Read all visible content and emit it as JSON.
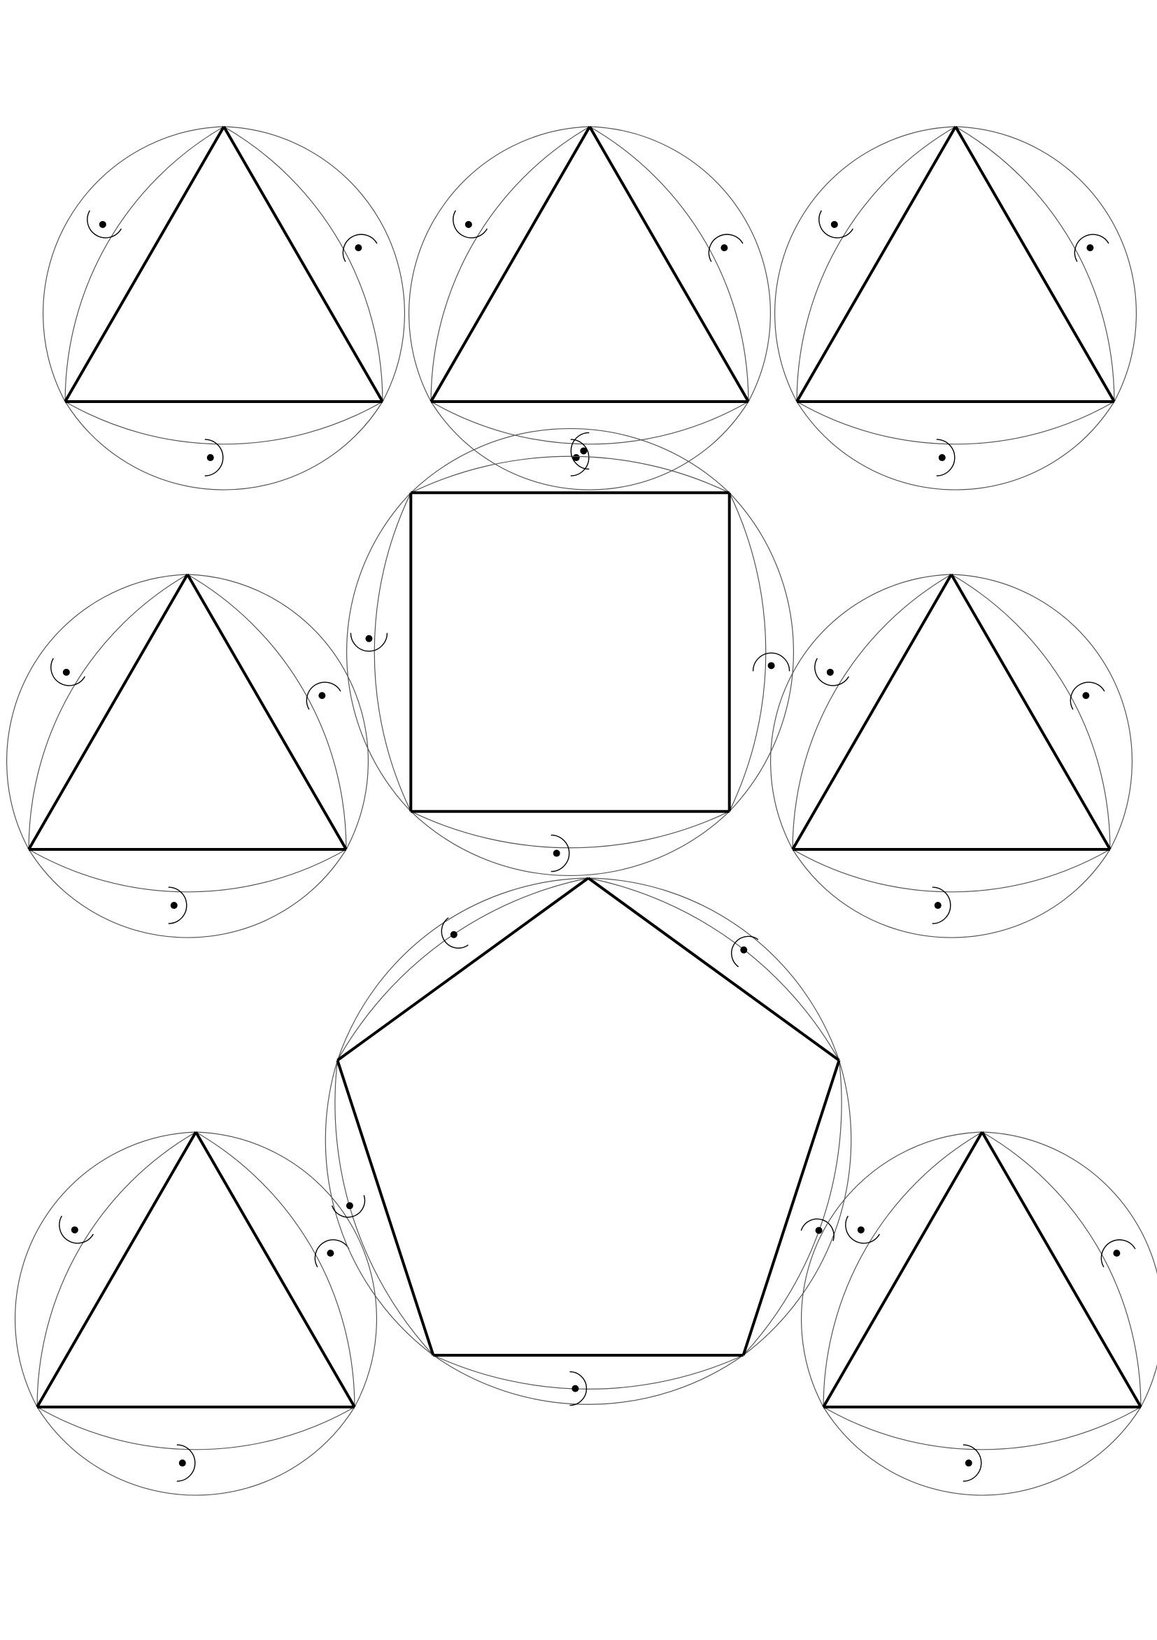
{
  "page": {
    "background": "#ffffff",
    "line_color": "#000000",
    "arc_color": "#555555"
  },
  "figures": [
    {
      "kind": "triangle",
      "sides": 3
    },
    {
      "kind": "triangle",
      "sides": 3
    },
    {
      "kind": "triangle",
      "sides": 3
    },
    {
      "kind": "triangle",
      "sides": 3
    },
    {
      "kind": "square",
      "sides": 4
    },
    {
      "kind": "triangle",
      "sides": 3
    },
    {
      "kind": "triangle",
      "sides": 3
    },
    {
      "kind": "pentagon",
      "sides": 5
    },
    {
      "kind": "triangle",
      "sides": 3
    }
  ]
}
